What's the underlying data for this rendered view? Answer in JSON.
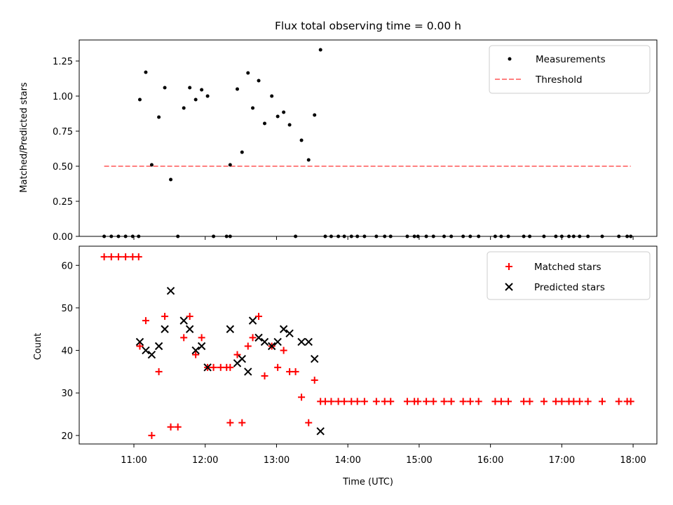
{
  "chart_data": [
    {
      "type": "scatter",
      "title": "Flux total observing time = 0.00 h",
      "xlabel": "",
      "ylabel": "Matched/Predicted stars",
      "xlim": [
        "10:14",
        "18:20"
      ],
      "ylim": [
        0,
        1.4
      ],
      "yticks": [
        0.0,
        0.25,
        0.5,
        0.75,
        1.0,
        1.25
      ],
      "ytick_labels": [
        "0.00",
        "0.25",
        "0.50",
        "0.75",
        "1.00",
        "1.25"
      ],
      "grid": false,
      "legend": {
        "position": "top-right",
        "entries": [
          {
            "label": "Measurements",
            "marker": "dot",
            "color": "#000000"
          },
          {
            "label": "Threshold",
            "marker": "dashed-line",
            "color": "#ff8080"
          }
        ]
      },
      "threshold": {
        "value": 0.5,
        "x_start": "10:35",
        "x_end": "17:58"
      },
      "series": [
        {
          "name": "Measurements",
          "color": "#000000",
          "points": [
            [
              "10:35",
              0
            ],
            [
              "10:41",
              0
            ],
            [
              "10:47",
              0
            ],
            [
              "10:53",
              0
            ],
            [
              "10:59",
              0
            ],
            [
              "11:04",
              0
            ],
            [
              "11:05",
              0.975
            ],
            [
              "11:10",
              1.17
            ],
            [
              "11:15",
              0.51
            ],
            [
              "11:21",
              0.85
            ],
            [
              "11:26",
              1.06
            ],
            [
              "11:31",
              0.405
            ],
            [
              "11:37",
              0
            ],
            [
              "11:42",
              0.915
            ],
            [
              "11:47",
              1.06
            ],
            [
              "11:52",
              0.975
            ],
            [
              "11:57",
              1.045
            ],
            [
              "12:02",
              1.0
            ],
            [
              "12:07",
              0
            ],
            [
              "12:18",
              0
            ],
            [
              "12:21",
              0
            ],
            [
              "12:21",
              0.51
            ],
            [
              "12:27",
              1.05
            ],
            [
              "12:31",
              0.6
            ],
            [
              "12:36",
              1.165
            ],
            [
              "12:40",
              0.915
            ],
            [
              "12:45",
              1.11
            ],
            [
              "12:50",
              0.805
            ],
            [
              "12:56",
              1.0
            ],
            [
              "13:01",
              0.855
            ],
            [
              "13:06",
              0.885
            ],
            [
              "13:11",
              0.795
            ],
            [
              "13:16",
              0
            ],
            [
              "13:21",
              0.685
            ],
            [
              "13:27",
              0.545
            ],
            [
              "13:32",
              0.865
            ],
            [
              "13:37",
              1.33
            ],
            [
              "13:41",
              0
            ],
            [
              "13:46",
              0
            ],
            [
              "13:52",
              0
            ],
            [
              "13:57",
              0
            ],
            [
              "14:03",
              0
            ],
            [
              "14:08",
              0
            ],
            [
              "14:14",
              0
            ],
            [
              "14:24",
              0
            ],
            [
              "14:31",
              0
            ],
            [
              "14:36",
              0
            ],
            [
              "14:50",
              0
            ],
            [
              "14:56",
              0
            ],
            [
              "14:59",
              0
            ],
            [
              "15:06",
              0
            ],
            [
              "15:12",
              0
            ],
            [
              "15:21",
              0
            ],
            [
              "15:27",
              0
            ],
            [
              "15:37",
              0
            ],
            [
              "15:43",
              0
            ],
            [
              "15:50",
              0
            ],
            [
              "16:04",
              0
            ],
            [
              "16:09",
              0
            ],
            [
              "16:15",
              0
            ],
            [
              "16:28",
              0
            ],
            [
              "16:33",
              0
            ],
            [
              "16:45",
              0
            ],
            [
              "16:55",
              0
            ],
            [
              "17:00",
              0
            ],
            [
              "17:06",
              0
            ],
            [
              "17:10",
              0
            ],
            [
              "17:15",
              0
            ],
            [
              "17:22",
              0
            ],
            [
              "17:34",
              0
            ],
            [
              "17:48",
              0
            ],
            [
              "17:55",
              0
            ],
            [
              "17:58",
              0
            ]
          ]
        }
      ]
    },
    {
      "type": "scatter",
      "title": "",
      "xlabel": "Time (UTC)",
      "ylabel": "Count",
      "xlim": [
        "10:14",
        "18:20"
      ],
      "ylim": [
        18,
        64.5
      ],
      "xtick_labels": [
        "11:00",
        "12:00",
        "13:00",
        "14:00",
        "15:00",
        "16:00",
        "17:00",
        "18:00"
      ],
      "yticks": [
        20,
        30,
        40,
        50,
        60
      ],
      "ytick_labels": [
        "20",
        "30",
        "40",
        "50",
        "60"
      ],
      "grid": false,
      "legend": {
        "position": "top-right",
        "entries": [
          {
            "label": "Matched stars",
            "marker": "plus",
            "color": "#ff0000"
          },
          {
            "label": "Predicted stars",
            "marker": "x",
            "color": "#000000"
          }
        ]
      },
      "series": [
        {
          "name": "Matched stars",
          "color": "#ff0000",
          "marker": "plus",
          "points": [
            [
              "10:35",
              62
            ],
            [
              "10:41",
              62
            ],
            [
              "10:47",
              62
            ],
            [
              "10:53",
              62
            ],
            [
              "10:59",
              62
            ],
            [
              "11:04",
              62
            ],
            [
              "11:05",
              41
            ],
            [
              "11:10",
              47
            ],
            [
              "11:15",
              20
            ],
            [
              "11:21",
              35
            ],
            [
              "11:26",
              48
            ],
            [
              "11:31",
              22
            ],
            [
              "11:37",
              22
            ],
            [
              "11:42",
              43
            ],
            [
              "11:47",
              48
            ],
            [
              "11:52",
              39
            ],
            [
              "11:57",
              43
            ],
            [
              "12:02",
              36
            ],
            [
              "12:07",
              36
            ],
            [
              "12:13",
              36
            ],
            [
              "12:18",
              36
            ],
            [
              "12:21",
              36
            ],
            [
              "12:21",
              23
            ],
            [
              "12:27",
              39
            ],
            [
              "12:31",
              23
            ],
            [
              "12:36",
              41
            ],
            [
              "12:40",
              43
            ],
            [
              "12:45",
              48
            ],
            [
              "12:50",
              34
            ],
            [
              "12:56",
              41
            ],
            [
              "13:01",
              36
            ],
            [
              "13:06",
              40
            ],
            [
              "13:11",
              35
            ],
            [
              "13:16",
              35
            ],
            [
              "13:21",
              29
            ],
            [
              "13:27",
              23
            ],
            [
              "13:32",
              33
            ],
            [
              "13:37",
              28
            ],
            [
              "13:41",
              28
            ],
            [
              "13:46",
              28
            ],
            [
              "13:52",
              28
            ],
            [
              "13:57",
              28
            ],
            [
              "14:03",
              28
            ],
            [
              "14:08",
              28
            ],
            [
              "14:14",
              28
            ],
            [
              "14:24",
              28
            ],
            [
              "14:31",
              28
            ],
            [
              "14:36",
              28
            ],
            [
              "14:50",
              28
            ],
            [
              "14:56",
              28
            ],
            [
              "14:59",
              28
            ],
            [
              "15:06",
              28
            ],
            [
              "15:12",
              28
            ],
            [
              "15:21",
              28
            ],
            [
              "15:27",
              28
            ],
            [
              "15:37",
              28
            ],
            [
              "15:43",
              28
            ],
            [
              "15:50",
              28
            ],
            [
              "16:04",
              28
            ],
            [
              "16:09",
              28
            ],
            [
              "16:15",
              28
            ],
            [
              "16:28",
              28
            ],
            [
              "16:33",
              28
            ],
            [
              "16:45",
              28
            ],
            [
              "16:55",
              28
            ],
            [
              "17:00",
              28
            ],
            [
              "17:06",
              28
            ],
            [
              "17:10",
              28
            ],
            [
              "17:15",
              28
            ],
            [
              "17:22",
              28
            ],
            [
              "17:34",
              28
            ],
            [
              "17:48",
              28
            ],
            [
              "17:55",
              28
            ],
            [
              "17:58",
              28
            ]
          ]
        },
        {
          "name": "Predicted stars",
          "color": "#000000",
          "marker": "x",
          "points": [
            [
              "11:05",
              42
            ],
            [
              "11:10",
              40
            ],
            [
              "11:15",
              39
            ],
            [
              "11:21",
              41
            ],
            [
              "11:26",
              45
            ],
            [
              "11:31",
              54
            ],
            [
              "11:42",
              47
            ],
            [
              "11:47",
              45
            ],
            [
              "11:52",
              40
            ],
            [
              "11:57",
              41
            ],
            [
              "12:02",
              36
            ],
            [
              "12:21",
              45
            ],
            [
              "12:27",
              37
            ],
            [
              "12:31",
              38
            ],
            [
              "12:36",
              35
            ],
            [
              "12:40",
              47
            ],
            [
              "12:45",
              43
            ],
            [
              "12:50",
              42
            ],
            [
              "12:56",
              41
            ],
            [
              "13:01",
              42
            ],
            [
              "13:06",
              45
            ],
            [
              "13:11",
              44
            ],
            [
              "13:21",
              42
            ],
            [
              "13:27",
              42
            ],
            [
              "13:32",
              38
            ],
            [
              "13:37",
              21
            ]
          ]
        }
      ]
    }
  ]
}
